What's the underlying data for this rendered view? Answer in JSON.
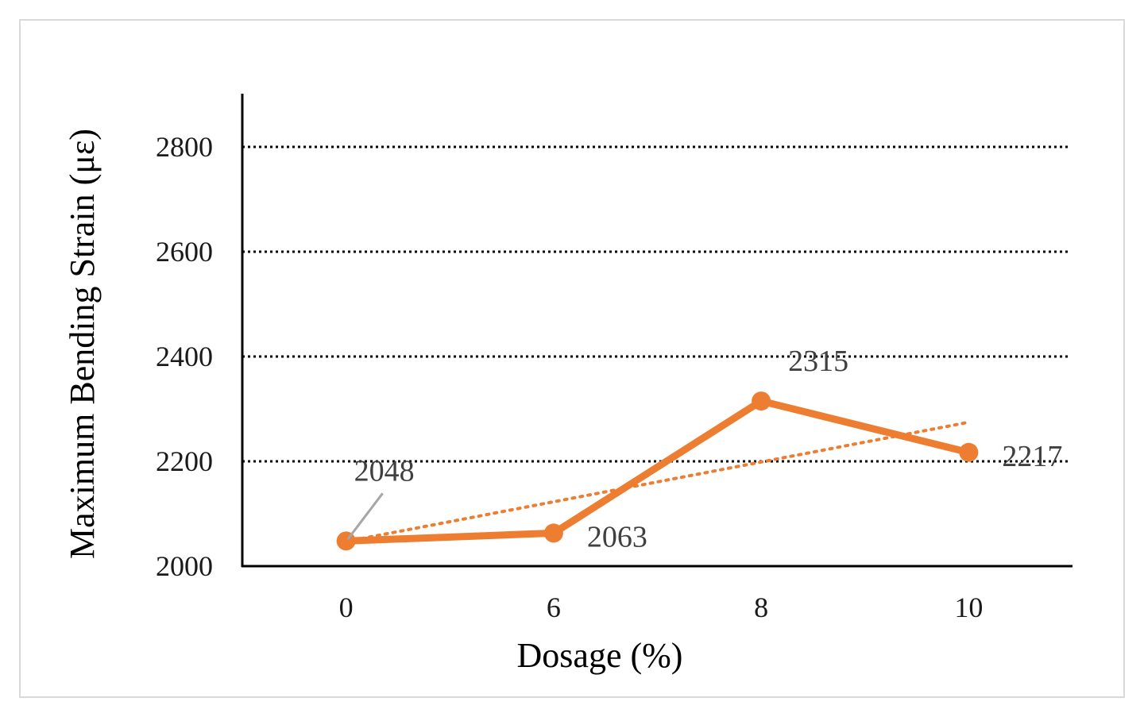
{
  "chart_data": {
    "type": "line",
    "categories": [
      "0",
      "6",
      "8",
      "10"
    ],
    "series": [
      {
        "values": [
          2048,
          2063,
          2315,
          2217
        ],
        "color": "#ed7d31",
        "data_labels": [
          "2048",
          "2063",
          "2315",
          "2217"
        ]
      }
    ],
    "trendline": {
      "kind": "linear",
      "style": "dotted",
      "color": "#ed7d31"
    },
    "xlabel": "Dosage (%)",
    "ylabel": "Maximum Bending Strain (με)",
    "ylim": [
      2000,
      2900
    ],
    "yticks": [
      "2000",
      "2200",
      "2400",
      "2600",
      "2800"
    ],
    "grid": "horizontal-dotted",
    "legend": "none",
    "colors": {
      "line": "#ed7d31",
      "grid": "#000000",
      "axis": "#000000",
      "leader_line": "#a6a6a6"
    }
  }
}
